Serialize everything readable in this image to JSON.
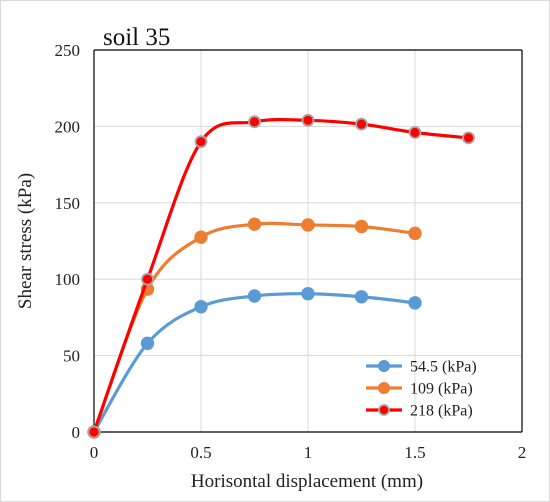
{
  "chart_data": {
    "type": "line",
    "title": "soil 35",
    "xlabel": "Horisontal displacement (mm)",
    "ylabel": "Shear stress (kPa)",
    "xlim": [
      0,
      2
    ],
    "ylim": [
      0,
      250
    ],
    "x_ticks": [
      "0",
      "0.5",
      "1",
      "1.5",
      "2"
    ],
    "y_ticks": [
      "0",
      "50",
      "100",
      "150",
      "200",
      "250"
    ],
    "grid": true,
    "legend_placement": "bottom-right",
    "series": [
      {
        "name": "54.5 (kPa)",
        "color": "#5B9BD5",
        "marker": "circle",
        "x": [
          0,
          0.25,
          0.5,
          0.75,
          1.0,
          1.25,
          1.5
        ],
        "y": [
          0,
          58,
          82,
          89,
          90.5,
          88.5,
          84.5
        ]
      },
      {
        "name": "109 (kPa)",
        "color": "#ED7D31",
        "marker": "circle",
        "x": [
          0,
          0.25,
          0.5,
          0.75,
          1.0,
          1.25,
          1.5
        ],
        "y": [
          0,
          93.5,
          127.5,
          136,
          135.5,
          134.5,
          130
        ]
      },
      {
        "name": "218 (kPa)",
        "color": "#FF0000",
        "marker": "circle-outlined",
        "x": [
          0,
          0.25,
          0.5,
          0.75,
          1.0,
          1.25,
          1.5,
          1.75
        ],
        "y": [
          0,
          100,
          190,
          203,
          204,
          201.5,
          196,
          192.5
        ]
      }
    ]
  }
}
